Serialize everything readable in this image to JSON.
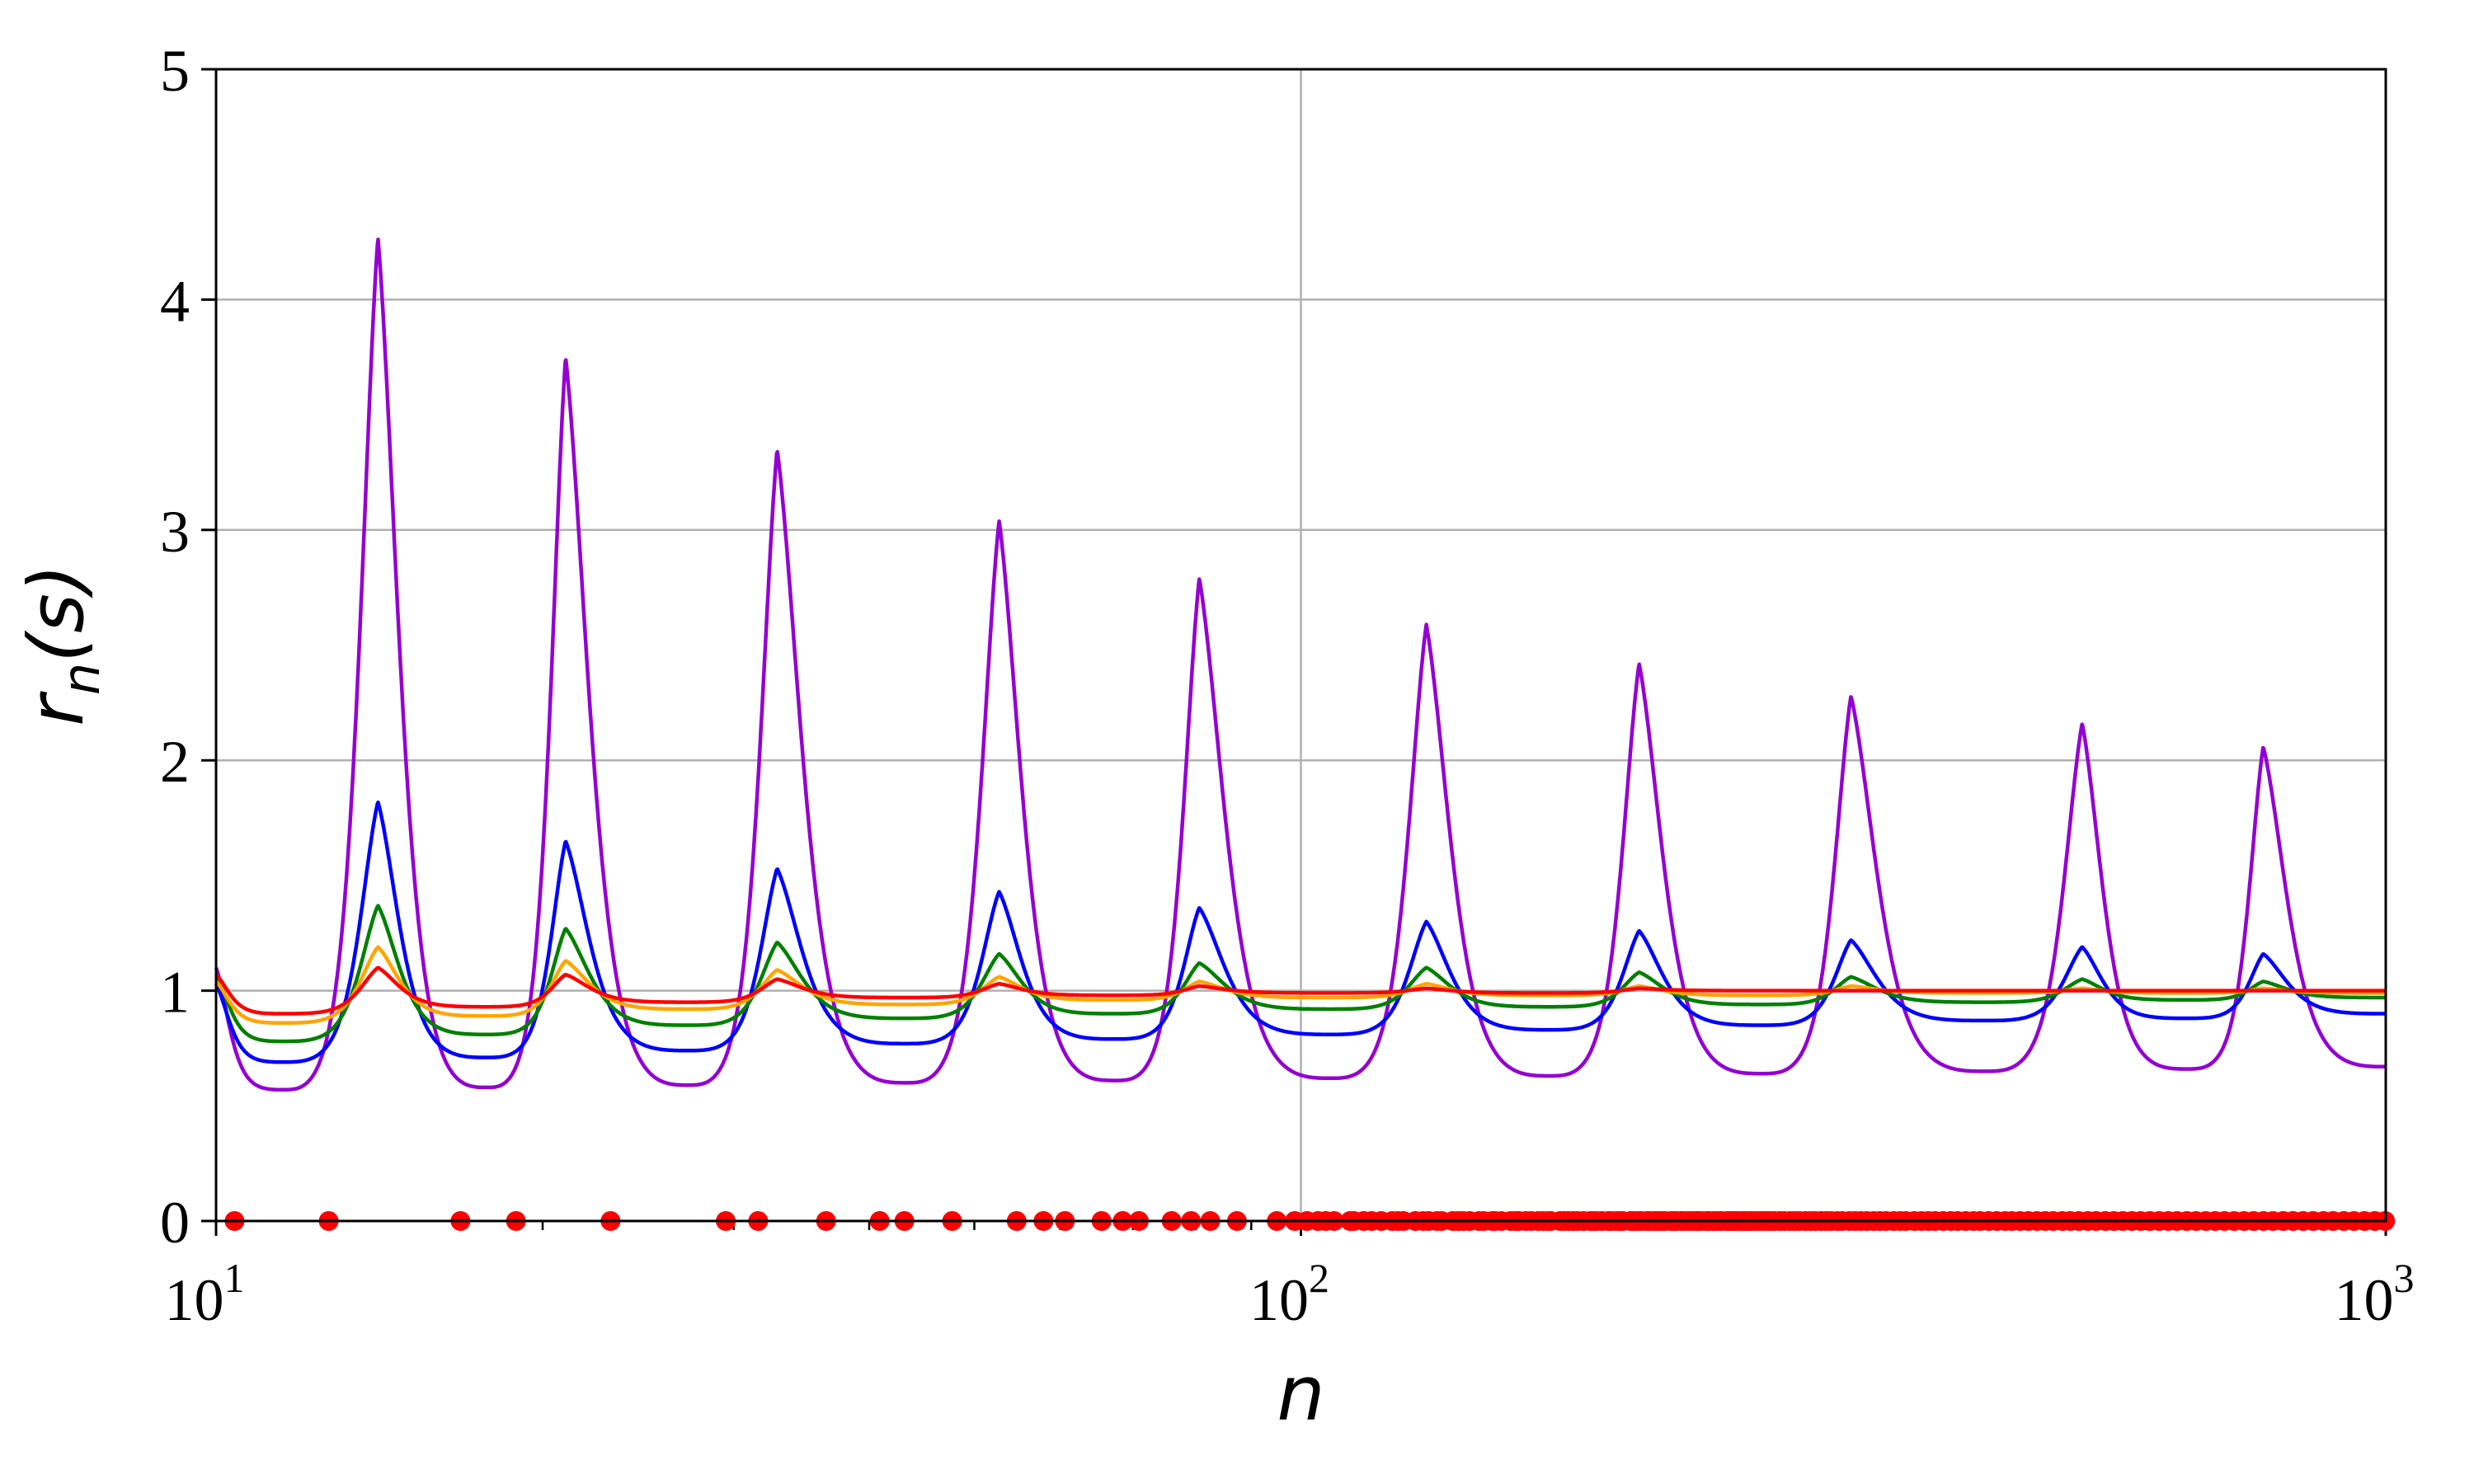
{
  "chart_data": {
    "type": "line",
    "xscale": "log",
    "xlim": [
      10,
      1000
    ],
    "ylim": [
      0,
      5
    ],
    "grid": true,
    "xlabel": "n",
    "ylabel": {
      "main": "r",
      "sub": "n",
      "tail": "(s)"
    },
    "xticks": [
      {
        "base": "10",
        "exp": "1",
        "value": 10
      },
      {
        "base": "10",
        "exp": "2",
        "value": 100
      },
      {
        "base": "10",
        "exp": "3",
        "value": 1000
      }
    ],
    "yticks": [
      "0",
      "1",
      "2",
      "3",
      "4",
      "5"
    ],
    "peaks_n": [
      14.1,
      21.0,
      32.9,
      52.7,
      80.6,
      130.5,
      205.0,
      321.4,
      525.0,
      771.0
    ],
    "series": [
      {
        "color": "#9400d3",
        "peaks": [
          4.27,
          3.75,
          3.35,
          3.04,
          2.79,
          2.59,
          2.42,
          2.28,
          2.16,
          2.06
        ],
        "troughs": [
          0.57,
          0.58,
          0.59,
          0.6,
          0.61,
          0.62,
          0.63,
          0.64,
          0.65,
          0.66,
          0.67
        ],
        "start": 1.1
      },
      {
        "color": "#0000ff",
        "peaks": [
          1.82,
          1.65,
          1.53,
          1.43,
          1.36,
          1.3,
          1.26,
          1.22,
          1.19,
          1.16
        ],
        "troughs": [
          0.69,
          0.71,
          0.74,
          0.77,
          0.79,
          0.81,
          0.83,
          0.85,
          0.87,
          0.88,
          0.9
        ],
        "start": 1.03
      },
      {
        "color": "#008000",
        "peaks": [
          1.37,
          1.27,
          1.21,
          1.16,
          1.12,
          1.1,
          1.08,
          1.06,
          1.05,
          1.04
        ],
        "troughs": [
          0.78,
          0.81,
          0.85,
          0.88,
          0.9,
          0.92,
          0.93,
          0.94,
          0.95,
          0.96,
          0.97
        ],
        "start": 1.07
      },
      {
        "color": "#ffa500",
        "peaks": [
          1.19,
          1.13,
          1.09,
          1.06,
          1.04,
          1.03,
          1.02,
          1.02,
          1.01,
          1.01
        ],
        "troughs": [
          0.86,
          0.89,
          0.92,
          0.94,
          0.96,
          0.97,
          0.98,
          0.98,
          0.99,
          0.99,
          0.99
        ],
        "start": 1.04
      },
      {
        "color": "#ff0000",
        "peaks": [
          1.1,
          1.07,
          1.05,
          1.03,
          1.02,
          1.01,
          1.01,
          1.0,
          1.0,
          1.0
        ],
        "troughs": [
          0.9,
          0.93,
          0.95,
          0.97,
          0.98,
          0.99,
          0.99,
          1.0,
          1.0,
          1.0,
          1.0
        ],
        "start": 1.07
      }
    ],
    "markers": {
      "color": "#ff0000",
      "y": 0,
      "n": [
        10.4,
        12.7,
        16.8,
        18.9,
        23.1,
        29.5,
        31.6,
        36.5,
        40.9,
        43.1,
        47.7,
        54.7,
        57.9,
        60.6,
        65.5,
        68.5,
        70.9,
        76.0,
        79.2,
        82.5,
        87.3,
        95.0,
        98.7,
        101.3,
        103.7,
        105.4,
        107.3,
        111.0,
        111.9,
        114.3,
        116.2,
        118.6,
        121.4,
        122.9,
        124.3,
        127.5,
        129.6,
        131.1,
        133.5,
        134.8,
        138.1,
        139.7,
        141.1,
        143.1,
        146.0,
        147.4,
        150.1,
        150.9,
        153.0,
        156.1,
        157.6,
        158.8,
        161.2,
        163.0,
        165.5,
        167.2,
        169.1,
        169.9,
        173.4,
        174.8,
        176.4,
        178.4,
        179.9,
        182.2,
        184.9,
        185.6,
        187.2,
        189.4,
        192.0,
        193.1,
        195.3,
        196.9,
        198.0,
        201.3,
        202.5,
        204.2,
        205.9,
        208.4,
        209.6,
        211.7,
        213.3,
        214.6,
        216.3,
        219.1,
        220.7,
        221.6,
        224.0,
        224.9,
        227.4,
        229.3,
        231.3,
        231.9,
        233.7,
        236.5,
        237.8,
        240.0,
        241.0,
        243.1,
        244.2,
        247.1,
        248.1,
        249.7,
        251.0,
        253.1,
        255.3,
        256.4,
        258.6,
        259.9,
        260.8,
        263.6,
        265.6,
        267.9,
        270.4,
        273.0,
        276.3,
        278.9,
        282.5,
        285.4,
        288.1,
        291.8,
        294.9,
        297.9,
        301.6,
        304.8,
        307.9,
        312.2,
        315.5,
        320.5,
        324.4,
        328.1,
        332.4,
        337.3,
        341.7,
        346.2,
        351.9,
        356.9,
        361.0,
        367.6,
        373.2,
        378.7,
        384.2,
        390.8,
        397.2,
        403.1,
        410.0,
        416.8,
        422.7,
        430.4,
        438.0,
        445.8,
        452.3,
        460.1,
        468.3,
        477.0,
        485.3,
        493.6,
        503.3,
        511.9,
        521.3,
        531.4,
        540.7,
        551.4,
        561.5,
        572.2,
        583.4,
        594.5,
        606.2,
        618.2,
        630.1,
        642.1,
        655.6,
        668.4,
        682.5,
        696.2,
        710.1,
        725.0,
        740.1,
        755.4,
        771.5,
        787.2,
        804.4,
        821.4,
        839.1,
        857.0,
        876.1,
        894.4,
        914.9,
        934.7,
        955.7,
        977.2,
        998.6
      ]
    }
  }
}
